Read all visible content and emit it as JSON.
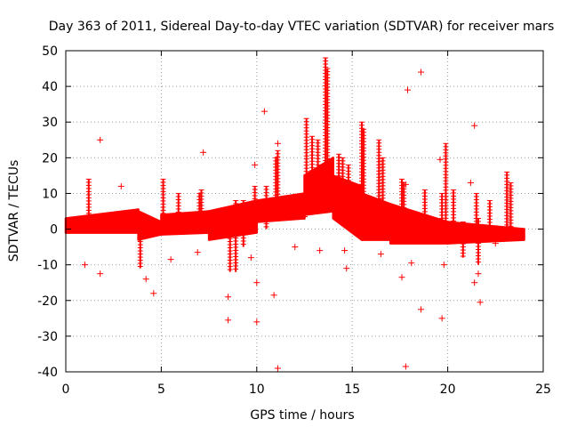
{
  "chart_data": {
    "type": "scatter",
    "title": "Day 363 of 2011, Sidereal Day-to-day VTEC variation (SDTVAR) for receiver mars",
    "xlabel": "GPS time / hours",
    "ylabel": "SDTVAR / TECUs",
    "xlim": [
      0,
      25
    ],
    "ylim": [
      -40,
      50
    ],
    "xticks": [
      0,
      5,
      10,
      15,
      20,
      25
    ],
    "yticks": [
      -40,
      -30,
      -20,
      -10,
      0,
      10,
      20,
      30,
      40,
      50
    ],
    "grid": true,
    "marker": "+",
    "color": "#ff0000",
    "band_segments": [
      {
        "x0": 0.0,
        "x1": 3.8,
        "lo0": -1,
        "hi0": 3,
        "lo1": -1,
        "hi1": 5.5
      },
      {
        "x0": 3.8,
        "x1": 5.0,
        "lo0": -3,
        "hi0": 5,
        "lo1": -1.5,
        "hi1": 2
      },
      {
        "x0": 5.0,
        "x1": 7.5,
        "lo0": -1.5,
        "hi0": 4,
        "lo1": -1,
        "hi1": 5
      },
      {
        "x0": 7.5,
        "x1": 10.0,
        "lo0": -3,
        "hi0": 5,
        "lo1": -1,
        "hi1": 8
      },
      {
        "x0": 10.0,
        "x1": 12.5,
        "lo0": 2,
        "hi0": 8,
        "lo1": 3,
        "hi1": 10
      },
      {
        "x0": 12.5,
        "x1": 14.0,
        "lo0": 4,
        "hi0": 15,
        "lo1": 5,
        "hi1": 20
      },
      {
        "x0": 14.0,
        "x1": 15.5,
        "lo0": 3,
        "hi0": 15,
        "lo1": -3,
        "hi1": 12
      },
      {
        "x0": 15.5,
        "x1": 17.0,
        "lo0": -3,
        "hi0": 10,
        "lo1": -3,
        "hi1": 7
      },
      {
        "x0": 17.0,
        "x1": 20.0,
        "lo0": -4,
        "hi0": 7,
        "lo1": -4,
        "hi1": 2
      },
      {
        "x0": 20.0,
        "x1": 24.0,
        "lo0": -4,
        "hi0": 2,
        "lo1": -3,
        "hi1": 0
      }
    ],
    "spikes": [
      {
        "x": 1.2,
        "lo": 0,
        "hi": 14
      },
      {
        "x": 3.9,
        "lo": -11,
        "hi": 0
      },
      {
        "x": 5.1,
        "lo": 0,
        "hi": 14
      },
      {
        "x": 5.9,
        "lo": 0,
        "hi": 10
      },
      {
        "x": 7.0,
        "lo": 0,
        "hi": 10
      },
      {
        "x": 7.1,
        "lo": 0,
        "hi": 11
      },
      {
        "x": 8.6,
        "lo": -12,
        "hi": 0
      },
      {
        "x": 8.9,
        "lo": -12,
        "hi": 8
      },
      {
        "x": 9.3,
        "lo": -5,
        "hi": 8
      },
      {
        "x": 9.9,
        "lo": 0,
        "hi": 12
      },
      {
        "x": 10.5,
        "lo": 0,
        "hi": 12
      },
      {
        "x": 11.0,
        "lo": 5,
        "hi": 20
      },
      {
        "x": 11.1,
        "lo": 5,
        "hi": 22
      },
      {
        "x": 12.6,
        "lo": 10,
        "hi": 31
      },
      {
        "x": 12.9,
        "lo": 10,
        "hi": 26
      },
      {
        "x": 13.2,
        "lo": 10,
        "hi": 25
      },
      {
        "x": 13.6,
        "lo": 10,
        "hi": 48
      },
      {
        "x": 13.7,
        "lo": 10,
        "hi": 45
      },
      {
        "x": 14.3,
        "lo": 10,
        "hi": 21
      },
      {
        "x": 14.5,
        "lo": 5,
        "hi": 20
      },
      {
        "x": 14.8,
        "lo": 5,
        "hi": 18
      },
      {
        "x": 15.5,
        "lo": 5,
        "hi": 30
      },
      {
        "x": 15.6,
        "lo": 5,
        "hi": 28
      },
      {
        "x": 16.4,
        "lo": 3,
        "hi": 25
      },
      {
        "x": 16.6,
        "lo": 3,
        "hi": 20
      },
      {
        "x": 17.6,
        "lo": 0,
        "hi": 14
      },
      {
        "x": 17.7,
        "lo": 0,
        "hi": 13
      },
      {
        "x": 18.8,
        "lo": 0,
        "hi": 11
      },
      {
        "x": 19.7,
        "lo": 0,
        "hi": 10
      },
      {
        "x": 19.9,
        "lo": 0,
        "hi": 24
      },
      {
        "x": 20.3,
        "lo": 0,
        "hi": 11
      },
      {
        "x": 20.8,
        "lo": -8,
        "hi": 2
      },
      {
        "x": 21.5,
        "lo": 0,
        "hi": 10
      },
      {
        "x": 21.6,
        "lo": -10,
        "hi": 3
      },
      {
        "x": 22.2,
        "lo": 0,
        "hi": 8
      },
      {
        "x": 23.1,
        "lo": 0,
        "hi": 16
      },
      {
        "x": 23.3,
        "lo": 0,
        "hi": 13
      }
    ],
    "outliers": [
      [
        1.8,
        25
      ],
      [
        1.0,
        -10
      ],
      [
        1.8,
        -12.5
      ],
      [
        4.6,
        -18
      ],
      [
        7.2,
        21.5
      ],
      [
        8.5,
        -19
      ],
      [
        8.5,
        -25.5
      ],
      [
        10.0,
        -26
      ],
      [
        10.0,
        -15
      ],
      [
        10.4,
        33
      ],
      [
        10.9,
        -18.5
      ],
      [
        11.1,
        -39
      ],
      [
        11.1,
        24
      ],
      [
        9.9,
        18
      ],
      [
        12.5,
        3.5
      ],
      [
        14.7,
        -11
      ],
      [
        14.6,
        -6
      ],
      [
        17.8,
        -38.5
      ],
      [
        17.9,
        39
      ],
      [
        17.6,
        -13.5
      ],
      [
        18.6,
        44
      ],
      [
        18.6,
        -22.5
      ],
      [
        19.7,
        -25
      ],
      [
        19.6,
        19.5
      ],
      [
        19.8,
        -10
      ],
      [
        21.2,
        13
      ],
      [
        21.4,
        29
      ],
      [
        21.4,
        -15
      ],
      [
        21.7,
        -20.5
      ],
      [
        18.1,
        -9.5
      ],
      [
        5.5,
        -8.5
      ],
      [
        4.2,
        -14
      ],
      [
        0.7,
        2.5
      ],
      [
        2.9,
        12
      ],
      [
        6.9,
        -6.5
      ],
      [
        9.7,
        -8
      ],
      [
        12.0,
        -5
      ],
      [
        13.3,
        -6
      ],
      [
        16.5,
        -7
      ],
      [
        21.6,
        -12.5
      ],
      [
        22.5,
        -4
      ],
      [
        17.8,
        12.5
      ]
    ]
  }
}
